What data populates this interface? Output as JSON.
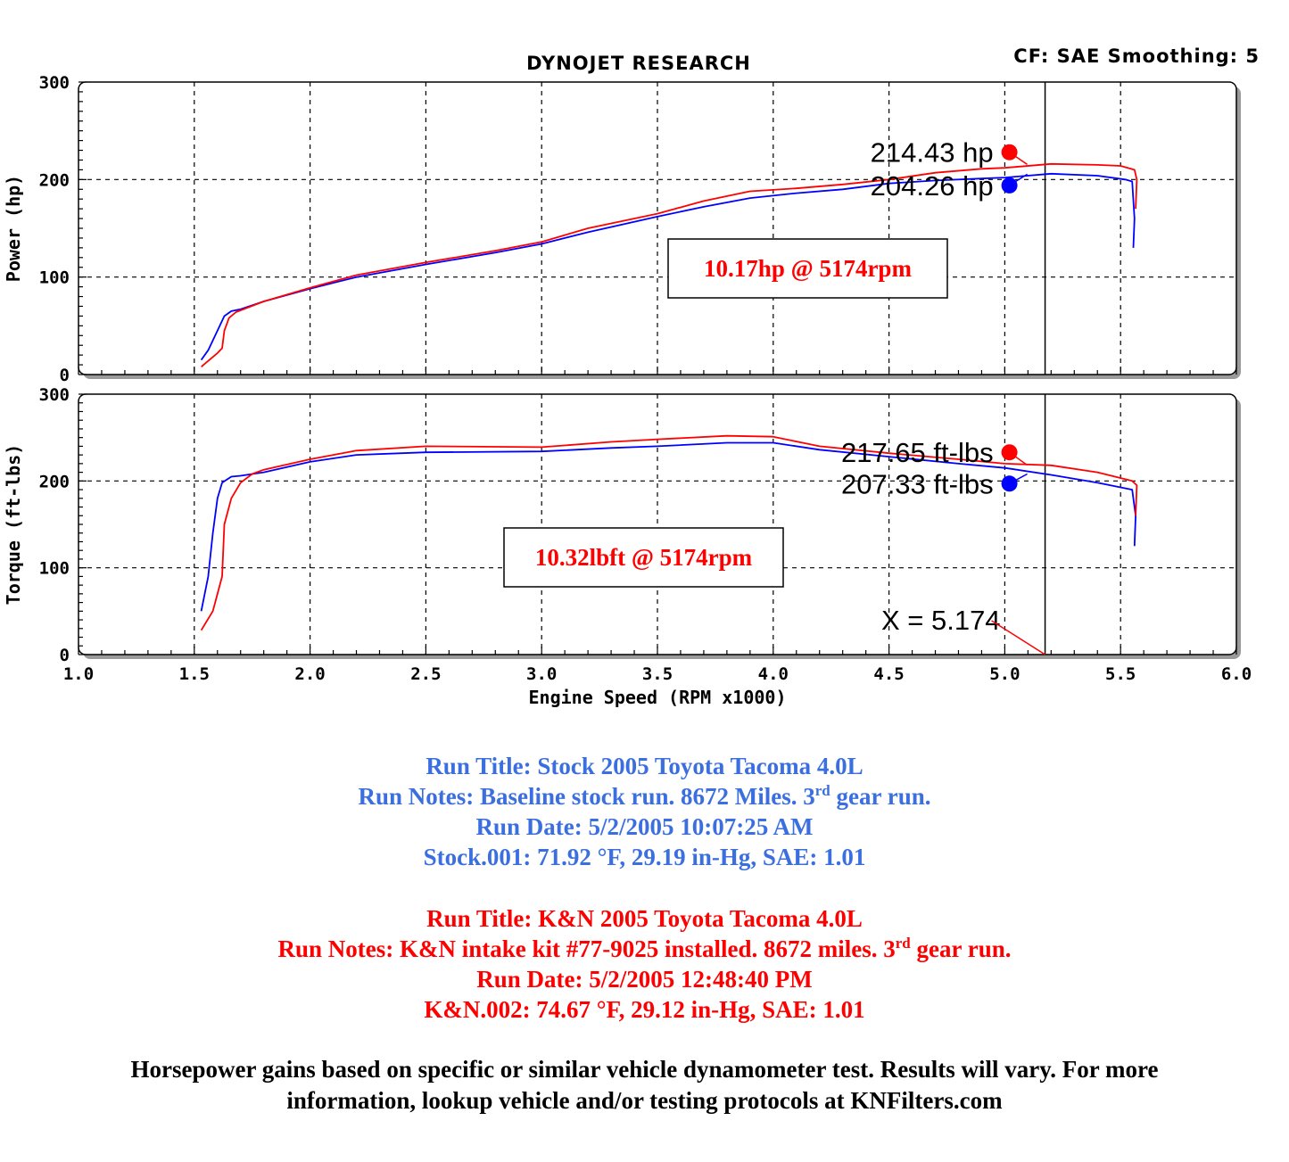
{
  "header": {
    "title": "DYNOJET RESEARCH",
    "settings": "CF: SAE  Smoothing: 5"
  },
  "colors": {
    "stock": "#0000ff",
    "kn": "#ff0000",
    "stock_text": "#3b6fe0"
  },
  "chart_data": [
    {
      "type": "line",
      "ylabel": "Power (hp)",
      "xlim": [
        1.0,
        6.0
      ],
      "ylim": [
        0,
        300
      ],
      "grid": true,
      "xticks": [
        "1.0",
        "1.5",
        "2.0",
        "2.5",
        "3.0",
        "3.5",
        "4.0",
        "4.5",
        "5.0",
        "5.5",
        "6.0"
      ],
      "yticks": [
        "0",
        "100",
        "200",
        "300"
      ],
      "series": [
        {
          "key": "stock",
          "x": [
            1.53,
            1.56,
            1.6,
            1.63,
            1.66,
            1.7,
            1.8,
            2.0,
            2.2,
            2.5,
            2.8,
            3.0,
            3.2,
            3.5,
            3.7,
            3.9,
            4.1,
            4.3,
            4.5,
            4.7,
            4.9,
            5.0,
            5.2,
            5.4,
            5.52,
            5.55,
            5.56,
            5.555
          ],
          "y": [
            15,
            25,
            45,
            60,
            65,
            67,
            75,
            88,
            100,
            113,
            125,
            134,
            146,
            162,
            172,
            181,
            186,
            190,
            196,
            199,
            201,
            202,
            206,
            204,
            200,
            198,
            160,
            130
          ]
        },
        {
          "key": "kn",
          "x": [
            1.53,
            1.56,
            1.6,
            1.62,
            1.63,
            1.65,
            1.68,
            1.8,
            2.0,
            2.2,
            2.5,
            2.8,
            3.0,
            3.2,
            3.5,
            3.7,
            3.9,
            4.1,
            4.3,
            4.5,
            4.7,
            4.9,
            5.0,
            5.2,
            5.4,
            5.5,
            5.56,
            5.57,
            5.565
          ],
          "y": [
            8,
            14,
            22,
            27,
            45,
            58,
            64,
            75,
            89,
            102,
            115,
            127,
            136,
            150,
            165,
            178,
            188,
            191,
            195,
            200,
            207,
            211,
            212,
            216,
            215,
            214,
            210,
            200,
            170
          ]
        }
      ],
      "markers": [
        {
          "key": "kn",
          "x": 5.02,
          "y": 228,
          "label": "214.43 hp"
        },
        {
          "key": "stock",
          "x": 5.02,
          "y": 194,
          "label": "204.26 hp"
        }
      ],
      "annotation": "10.17hp @ 5174rpm",
      "cursor_x": 5.174
    },
    {
      "type": "line",
      "ylabel": "Torque (ft-lbs)",
      "xlabel": "Engine Speed (RPM x1000)",
      "xlim": [
        1.0,
        6.0
      ],
      "ylim": [
        0,
        300
      ],
      "grid": true,
      "xticks": [
        "1.0",
        "1.5",
        "2.0",
        "2.5",
        "3.0",
        "3.5",
        "4.0",
        "4.5",
        "5.0",
        "5.5",
        "6.0"
      ],
      "yticks": [
        "0",
        "100",
        "200",
        "300"
      ],
      "series": [
        {
          "key": "stock",
          "x": [
            1.53,
            1.56,
            1.58,
            1.6,
            1.62,
            1.66,
            1.7,
            1.8,
            2.0,
            2.2,
            2.5,
            3.0,
            3.3,
            3.5,
            3.8,
            4.0,
            4.2,
            4.5,
            4.8,
            5.0,
            5.2,
            5.4,
            5.55,
            5.565,
            5.56
          ],
          "y": [
            50,
            90,
            140,
            180,
            198,
            205,
            206,
            210,
            222,
            230,
            233,
            234,
            238,
            240,
            244,
            244,
            236,
            228,
            220,
            215,
            207,
            198,
            190,
            160,
            125
          ]
        },
        {
          "key": "kn",
          "x": [
            1.53,
            1.58,
            1.6,
            1.62,
            1.63,
            1.66,
            1.7,
            1.75,
            1.8,
            2.0,
            2.2,
            2.5,
            3.0,
            3.3,
            3.5,
            3.8,
            4.0,
            4.2,
            4.5,
            4.8,
            5.0,
            5.2,
            5.4,
            5.55,
            5.57,
            5.565
          ],
          "y": [
            28,
            50,
            70,
            90,
            150,
            180,
            198,
            208,
            213,
            225,
            235,
            240,
            239,
            245,
            248,
            252,
            251,
            240,
            232,
            225,
            220,
            218,
            210,
            200,
            195,
            160
          ]
        }
      ],
      "markers": [
        {
          "key": "kn",
          "x": 5.02,
          "y": 233,
          "label": "217.65 ft-lbs"
        },
        {
          "key": "stock",
          "x": 5.02,
          "y": 197,
          "label": "207.33 ft-lbs"
        }
      ],
      "annotation": "10.32lbft @ 5174rpm",
      "cursor_x": 5.174,
      "cursor_label": "X = 5.174"
    }
  ],
  "run_stock": {
    "title": "Run Title: Stock 2005 Toyota Tacoma 4.0L",
    "notes_pre": "Run Notes: Baseline stock run. 8672 Miles. 3",
    "notes_sup": "rd",
    "notes_post": " gear run.",
    "date": "Run Date: 5/2/2005 10:07:25 AM",
    "conditions": "Stock.001: 71.92 °F, 29.19 in-Hg, SAE: 1.01"
  },
  "run_kn": {
    "title": "Run Title: K&N 2005 Toyota Tacoma 4.0L",
    "notes_pre": "Run Notes: K&N intake kit #77-9025 installed. 8672 miles. 3",
    "notes_sup": "rd",
    "notes_post": " gear run.",
    "date": "Run Date: 5/2/2005 12:48:40 PM",
    "conditions": "K&N.002: 74.67 °F, 29.12 in-Hg, SAE: 1.01"
  },
  "disclaimer": {
    "line1": "Horsepower gains based on specific or similar vehicle dynamometer test. Results will vary. For more",
    "line2": "information, lookup vehicle and/or testing protocols at KNFilters.com"
  }
}
